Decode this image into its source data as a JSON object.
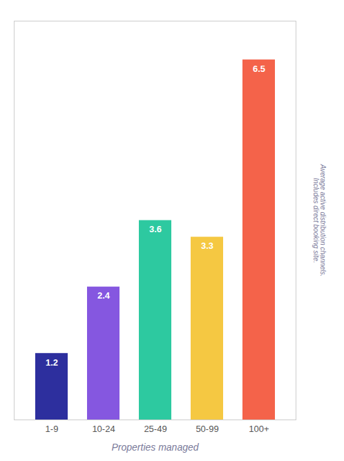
{
  "chart_data": {
    "type": "bar",
    "categories": [
      "1-9",
      "10-24",
      "25-49",
      "50-99",
      "100+"
    ],
    "values": [
      1.2,
      2.4,
      3.6,
      3.3,
      6.5
    ],
    "colors": [
      "#2d2f9e",
      "#8557e0",
      "#2dc9a0",
      "#f5c842",
      "#f4634a"
    ],
    "xlabel": "Properties managed",
    "annotations": [
      "Average active distribution channels.",
      "Includes direct booking site."
    ],
    "ylim": [
      0,
      7.2
    ],
    "tick_labels": "x",
    "data_labels": true
  }
}
